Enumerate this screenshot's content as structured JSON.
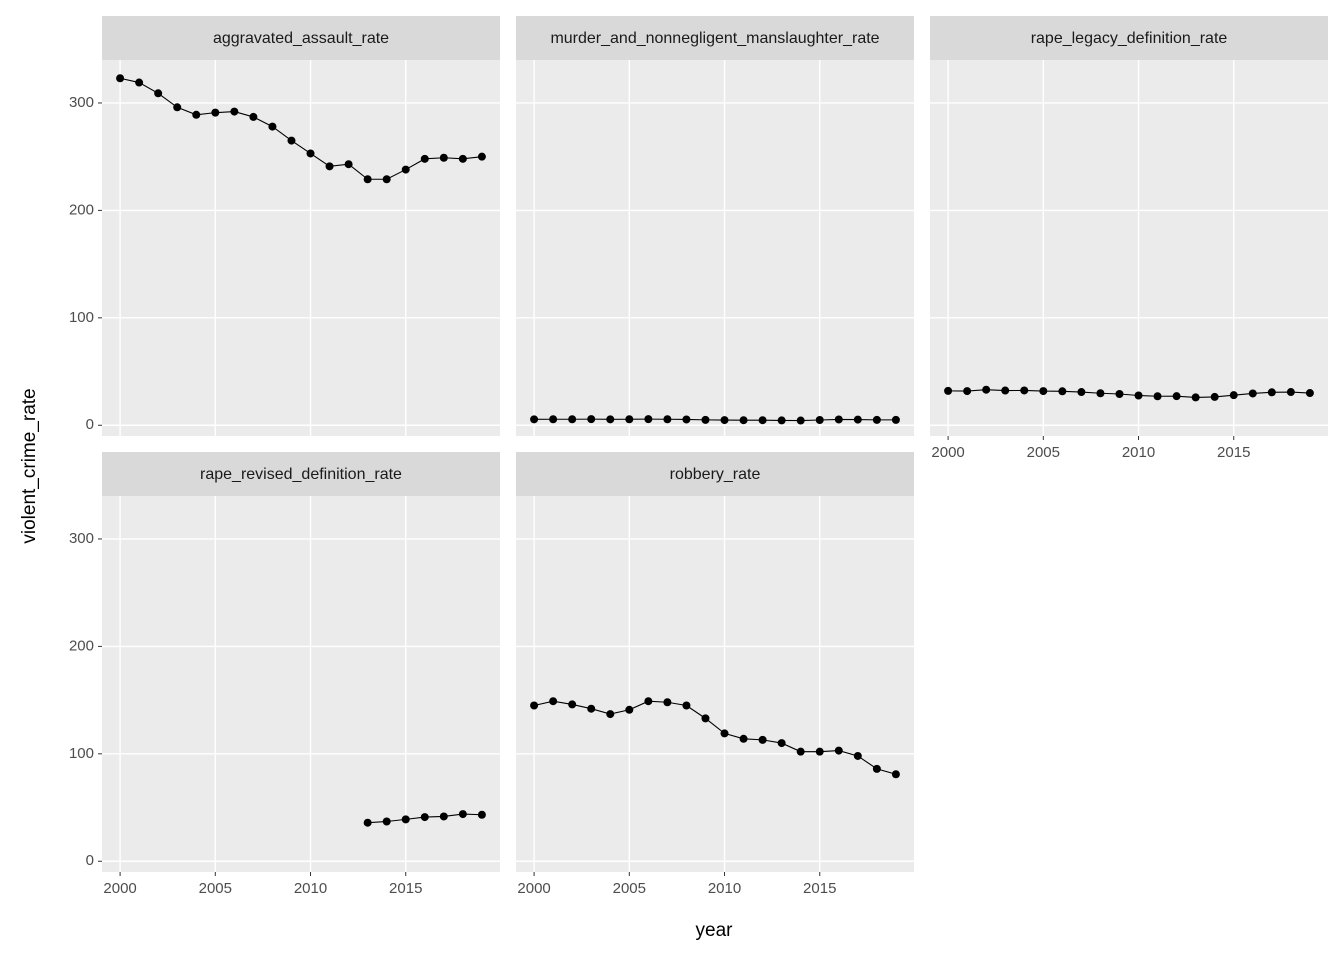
{
  "chart_data": {
    "type": "line",
    "xlabel": "year",
    "ylabel": "violent_crime_rate",
    "x": [
      2000,
      2001,
      2002,
      2003,
      2004,
      2005,
      2006,
      2007,
      2008,
      2009,
      2010,
      2011,
      2012,
      2013,
      2014,
      2015,
      2016,
      2017,
      2018,
      2019
    ],
    "xlim": [
      1999.05,
      2019.95
    ],
    "xticks": [
      2000,
      2005,
      2010,
      2015
    ],
    "ylim": [
      -10,
      340
    ],
    "yticks": [
      0,
      100,
      200,
      300
    ],
    "grid": true,
    "color": "#000000",
    "facets": [
      {
        "title": "aggravated_assault_rate",
        "values": [
          323,
          319,
          309,
          296,
          289,
          291,
          292,
          287,
          278,
          265,
          253,
          241,
          243,
          229,
          229,
          238,
          248,
          249,
          248,
          250
        ]
      },
      {
        "title": "murder_and_nonnegligent_manslaughter_rate",
        "values": [
          5.5,
          5.6,
          5.6,
          5.7,
          5.5,
          5.6,
          5.7,
          5.6,
          5.4,
          5.0,
          4.8,
          4.7,
          4.7,
          4.5,
          4.4,
          4.9,
          5.4,
          5.3,
          5.0,
          5.0
        ]
      },
      {
        "title": "rape_legacy_definition_rate",
        "values": [
          32.0,
          31.8,
          33.1,
          32.3,
          32.4,
          31.8,
          31.6,
          30.9,
          29.8,
          29.1,
          27.7,
          27.0,
          27.1,
          25.9,
          26.4,
          28.0,
          29.6,
          30.7,
          30.9,
          30.0
        ]
      },
      {
        "title": "rape_revised_definition_rate",
        "values": [
          null,
          null,
          null,
          null,
          null,
          null,
          null,
          null,
          null,
          null,
          null,
          null,
          null,
          35.9,
          37.0,
          39.0,
          41.1,
          41.7,
          43.9,
          43.3
        ]
      },
      {
        "title": "robbery_rate",
        "values": [
          145,
          149,
          146,
          142,
          137,
          141,
          149,
          148,
          145,
          133,
          119,
          114,
          113,
          110,
          102,
          102,
          103,
          98,
          86,
          81
        ]
      }
    ]
  }
}
